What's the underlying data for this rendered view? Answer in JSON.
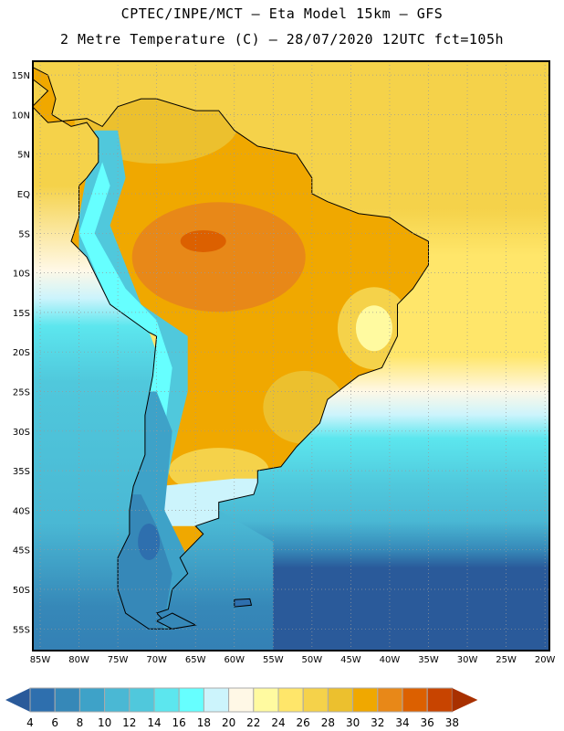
{
  "header": {
    "line1": "CPTEC/INPE/MCT –  Eta Model 15km – GFS",
    "line2": "2 Metre Temperature (C) – 28/07/2020 12UTC fct=105h"
  },
  "map": {
    "lat_labels": [
      "15N",
      "10N",
      "5N",
      "EQ",
      "5S",
      "10S",
      "15S",
      "20S",
      "25S",
      "30S",
      "35S",
      "40S",
      "45S",
      "50S",
      "55S"
    ],
    "lat_values": [
      15,
      10,
      5,
      0,
      -5,
      -10,
      -15,
      -20,
      -25,
      -30,
      -35,
      -40,
      -45,
      -50,
      -55
    ],
    "lon_labels": [
      "85W",
      "80W",
      "75W",
      "70W",
      "65W",
      "60W",
      "55W",
      "50W",
      "45W",
      "40W",
      "35W",
      "30W",
      "25W",
      "20W"
    ],
    "lon_values": [
      -85,
      -80,
      -75,
      -70,
      -65,
      -60,
      -55,
      -50,
      -45,
      -40,
      -35,
      -30,
      -25,
      -20
    ]
  },
  "colorbar": {
    "labels": [
      "4",
      "6",
      "8",
      "10",
      "12",
      "14",
      "16",
      "18",
      "20",
      "22",
      "24",
      "26",
      "28",
      "30",
      "32",
      "34",
      "36",
      "38"
    ],
    "below_color": "#2a5a9a",
    "above_color": "#a83000",
    "colors": [
      "#2e6fae",
      "#3688b8",
      "#3ea2c8",
      "#4ab8d4",
      "#50c8dc",
      "#5ce6ee",
      "#66ffff",
      "#ccf4fc",
      "#fff8e6",
      "#fffaa0",
      "#ffe66a",
      "#f5d24a",
      "#ecc02e",
      "#f0a800",
      "#e88818",
      "#dc6000",
      "#c84400"
    ]
  }
}
